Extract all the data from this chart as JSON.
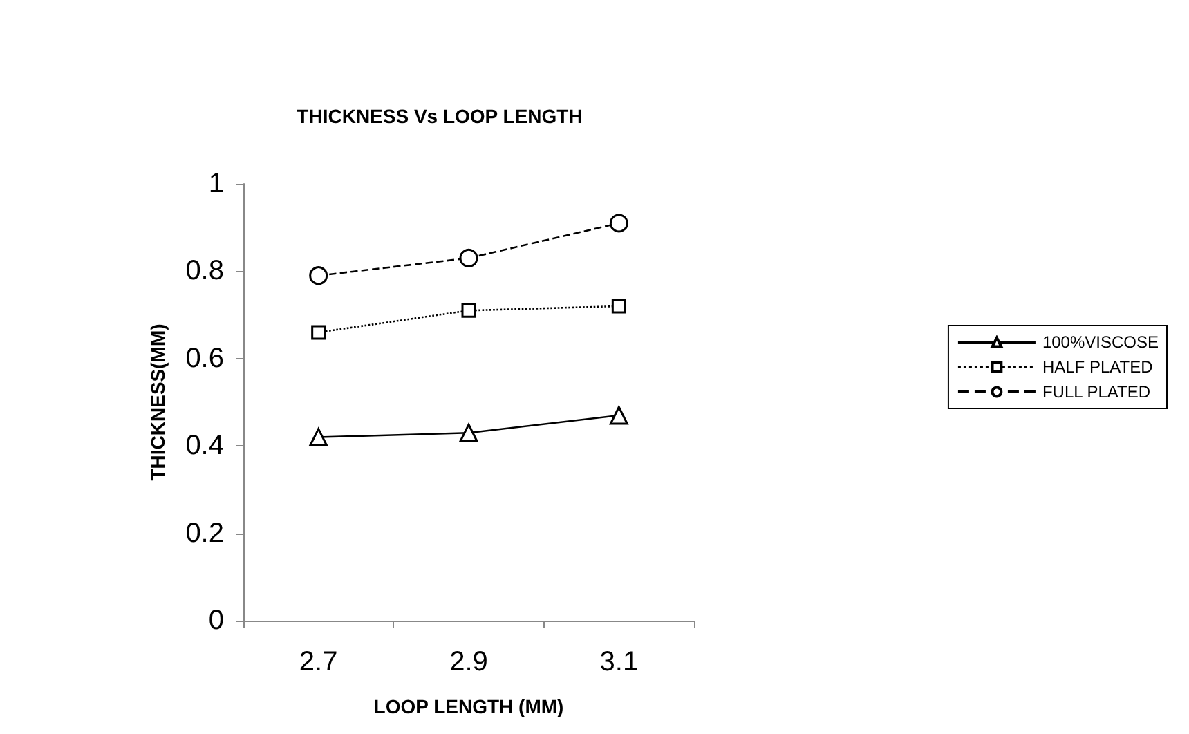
{
  "chart_data": {
    "type": "line",
    "title": "THICKNESS Vs LOOP LENGTH",
    "xlabel": "LOOP LENGTH (MM)",
    "ylabel": "THICKNESS(MM)",
    "categories": [
      "2.7",
      "2.9",
      "3.1"
    ],
    "ylim": [
      0,
      1
    ],
    "yticks": [
      0,
      0.2,
      0.4,
      0.6,
      0.8,
      1
    ],
    "grid": false,
    "legend": "right",
    "series": [
      {
        "name": "100%VISCOSE",
        "color": "#000000",
        "marker": "triangle",
        "line_style": "solid",
        "values": [
          0.42,
          0.43,
          0.47
        ]
      },
      {
        "name": "HALF PLATED",
        "color": "#000000",
        "marker": "square",
        "line_style": "dotted",
        "values": [
          0.66,
          0.71,
          0.72
        ]
      },
      {
        "name": "FULL PLATED",
        "color": "#000000",
        "marker": "circle",
        "line_style": "dashed",
        "values": [
          0.79,
          0.83,
          0.91
        ]
      }
    ]
  }
}
